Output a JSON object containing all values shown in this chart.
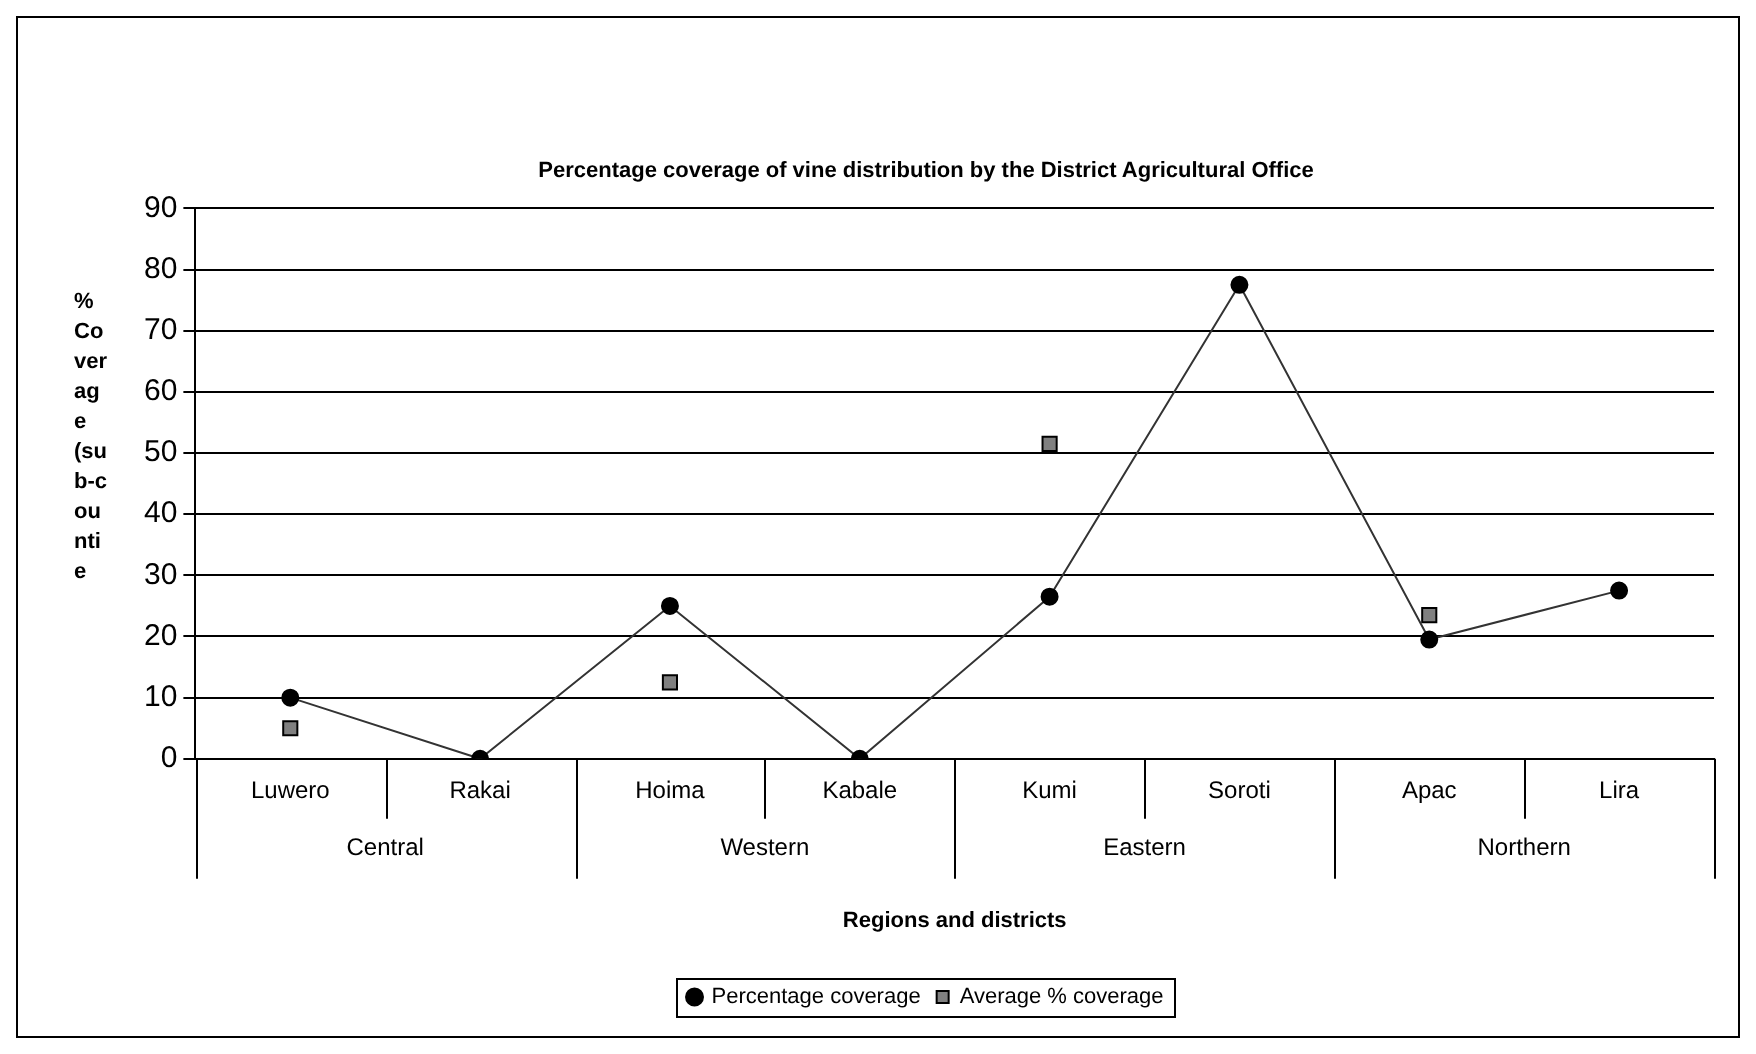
{
  "chart_data": {
    "type": "line",
    "title": "Percentage coverage of vine distribution by the District Agricultural Office",
    "xlabel": "Regions and districts",
    "ylabel": "% Coverage (sub-countie",
    "categories": [
      "Luwero",
      "Rakai",
      "Hoima",
      "Kabale",
      "Kumi",
      "Soroti",
      "Apac",
      "Lira"
    ],
    "annotations": [
      "Central",
      "Western",
      "Eastern",
      "Northern"
    ],
    "series": [
      {
        "name": "Percentage coverage",
        "color": "#000000",
        "marker": "circle",
        "values": [
          10,
          0,
          25,
          0,
          26.5,
          77.5,
          19.5,
          27.5
        ]
      },
      {
        "name": "Average % coverage",
        "type": "scatter",
        "color": "#808080",
        "marker": "square",
        "values": [
          5,
          null,
          12.5,
          null,
          51.5,
          null,
          23.5,
          null
        ]
      }
    ],
    "ylim": [
      0,
      90
    ],
    "yticks": [
      0,
      10,
      20,
      30,
      40,
      50,
      60,
      70,
      80,
      90
    ],
    "grid": "y",
    "legend": "bottom"
  }
}
